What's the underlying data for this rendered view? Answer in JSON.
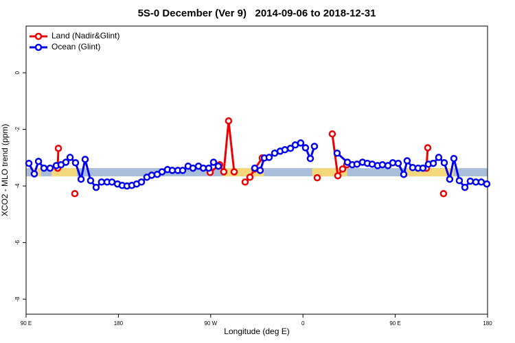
{
  "chart_data": {
    "type": "line",
    "title": "5S-0 December (Ver 9)   2014-09-06 to 2018-12-31",
    "x_label": "Longitude (deg E)",
    "y_label": "XCO2 - MLO trend (ppm)",
    "xlim": [
      90,
      540
    ],
    "ylim": [
      -8.53,
      1.65
    ],
    "xticks": [
      {
        "value": 90,
        "label": "90 E"
      },
      {
        "value": 180,
        "label": "180"
      },
      {
        "value": 270,
        "label": "90 W"
      },
      {
        "value": 360,
        "label": "0"
      },
      {
        "value": 450,
        "label": "90 E"
      },
      {
        "value": 540,
        "label": "180"
      }
    ],
    "yticks": [
      0,
      -2,
      -4,
      -6,
      -8
    ],
    "band_ylim": [
      -3.66,
      -3.37
    ],
    "band_color": "#a8bedb",
    "land_spans": [
      [
        94.7,
        104.7
      ],
      [
        114.8,
        139.6
      ],
      [
        282,
        322
      ],
      [
        369,
        403
      ],
      [
        461,
        507
      ]
    ],
    "land_color": "#f5d77c",
    "legend": "top-left",
    "series": [
      {
        "name": "Land (Nadir&Glint)",
        "color": "#ee0000",
        "x": [
          120.8,
          121.5,
          null,
          137.5,
          null,
          269.5,
          278.8,
          282.8,
          287.5,
          292.9,
          null,
          303.6,
          308.3,
          313.0,
          320.3,
          null,
          373.9,
          null,
          388.6,
          394.0,
          398.7,
          402.7,
          null,
          480.4,
          481.7,
          null,
          497.1
        ],
        "values": [
          -3.37,
          -2.67,
          null,
          -4.27,
          null,
          -3.52,
          -3.25,
          -3.5,
          -1.7,
          -3.5,
          null,
          -3.86,
          -3.69,
          -3.4,
          -3.01,
          null,
          -3.71,
          null,
          -2.16,
          -3.64,
          -3.4,
          -3.25,
          null,
          -3.37,
          -2.65,
          null,
          -4.27
        ]
      },
      {
        "name": "Ocean (Glint)",
        "color": "#0000ee",
        "x": [
          92.7,
          98.0,
          102.1,
          107.4,
          113.4,
          119.5,
          124.1,
          128.8,
          132.9,
          138.2,
          143.6,
          147.6,
          152.9,
          158.3,
          163.6,
          169.0,
          173.7,
          179.1,
          183.7,
          188.4,
          193.1,
          197.8,
          202.5,
          207.8,
          212.5,
          217.9,
          222.6,
          227.9,
          232.6,
          238.0,
          242.7,
          248.0,
          252.7,
          258.1,
          262.8,
          268.1,
          272.8,
          277.5,
          null,
          313.0,
          318.3,
          322.4,
          327.0,
          332.4,
          337.8,
          342.4,
          347.8,
          352.5,
          357.8,
          362.5,
          367.2,
          371.2,
          null,
          393.3,
          403.4,
          408.1,
          412.7,
          418.1,
          422.8,
          427.5,
          432.8,
          437.5,
          442.9,
          447.6,
          452.9,
          458.3,
          461.6,
          467.0,
          472.3,
          477.0,
          482.4,
          487.1,
          492.4,
          497.8,
          503.1,
          507.2,
          512.5,
          517.9,
          523.2,
          528.6,
          533.9,
          539.3
        ],
        "values": [
          -3.2,
          -3.57,
          -3.13,
          -3.37,
          -3.37,
          -3.28,
          -3.25,
          -3.16,
          -2.99,
          -3.18,
          -3.76,
          -3.06,
          -3.81,
          -4.05,
          -3.86,
          -3.86,
          -3.86,
          -3.93,
          -3.98,
          -4.0,
          -3.98,
          -3.93,
          -3.86,
          -3.69,
          -3.62,
          -3.59,
          -3.5,
          -3.42,
          -3.45,
          -3.45,
          -3.45,
          -3.3,
          -3.37,
          -3.3,
          -3.37,
          -3.37,
          -3.16,
          -3.3,
          null,
          -3.37,
          -3.45,
          -3.01,
          -2.99,
          -2.84,
          -2.77,
          -2.72,
          -2.67,
          -2.55,
          -2.48,
          -2.65,
          -3.03,
          -2.6,
          null,
          -2.84,
          -3.16,
          -3.25,
          -3.23,
          -3.16,
          -3.2,
          -3.23,
          -3.28,
          -3.25,
          -3.28,
          -3.18,
          -3.2,
          -3.59,
          -3.11,
          -3.35,
          -3.37,
          -3.37,
          -3.23,
          -3.2,
          -2.99,
          -3.18,
          -3.76,
          -3.03,
          -3.81,
          -4.05,
          -3.83,
          -3.86,
          -3.86,
          -3.93
        ]
      }
    ]
  }
}
